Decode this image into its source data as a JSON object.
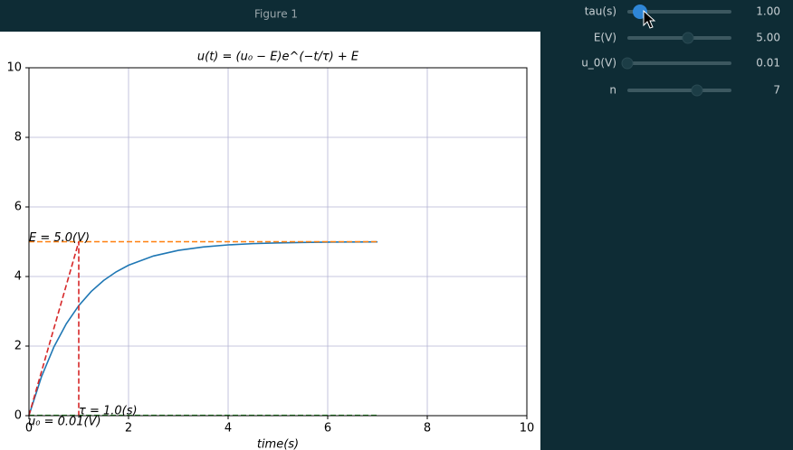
{
  "window": {
    "title": "Figure 1"
  },
  "sliders": [
    {
      "label": "tau(s)",
      "value": "1.00"
    },
    {
      "label": "E(V)",
      "value": "5.00"
    },
    {
      "label": "u_0(V)",
      "value": "0.01"
    },
    {
      "label": "n",
      "value": "7"
    }
  ],
  "chart_data": {
    "type": "line",
    "title": "u(t) = (u₀ − E)e^(−t/τ) + E",
    "x_label": "time(s)",
    "annotations": [
      "E = 5.0(V)",
      "τ = 1.0(s)",
      "u₀ = 0.01(V)"
    ],
    "xlim": [
      0,
      10
    ],
    "ylim": [
      0,
      10
    ],
    "xticks": [
      0,
      2,
      4,
      6,
      8,
      10
    ],
    "yticks": [
      0,
      2,
      4,
      6,
      8,
      10
    ],
    "grid": true,
    "grid_color": "#b4b4d4",
    "series": [
      {
        "color": "#1f77b4",
        "linestyle": "solid",
        "x": [
          0,
          0.25,
          0.5,
          0.75,
          1,
          1.25,
          1.5,
          1.75,
          2,
          2.5,
          3,
          3.5,
          4,
          4.5,
          5,
          5.5,
          6,
          6.5,
          7
        ],
        "values": [
          0.01,
          1.114,
          1.973,
          2.643,
          3.164,
          3.57,
          3.887,
          4.133,
          4.325,
          4.59,
          4.752,
          4.849,
          4.909,
          4.945,
          4.966,
          4.98,
          4.988,
          4.993,
          4.995
        ]
      },
      {
        "color": "#ff7f0e",
        "linestyle": "dashed",
        "x": [
          0,
          7
        ],
        "values": [
          5,
          5
        ]
      },
      {
        "color": "#2ca02c",
        "linestyle": "dashed",
        "x": [
          0,
          7
        ],
        "values": [
          0.01,
          0.01
        ]
      },
      {
        "color": "#d62728",
        "linestyle": "dashed",
        "x": [
          0,
          1,
          1
        ],
        "values": [
          0.01,
          5,
          0
        ]
      }
    ]
  }
}
